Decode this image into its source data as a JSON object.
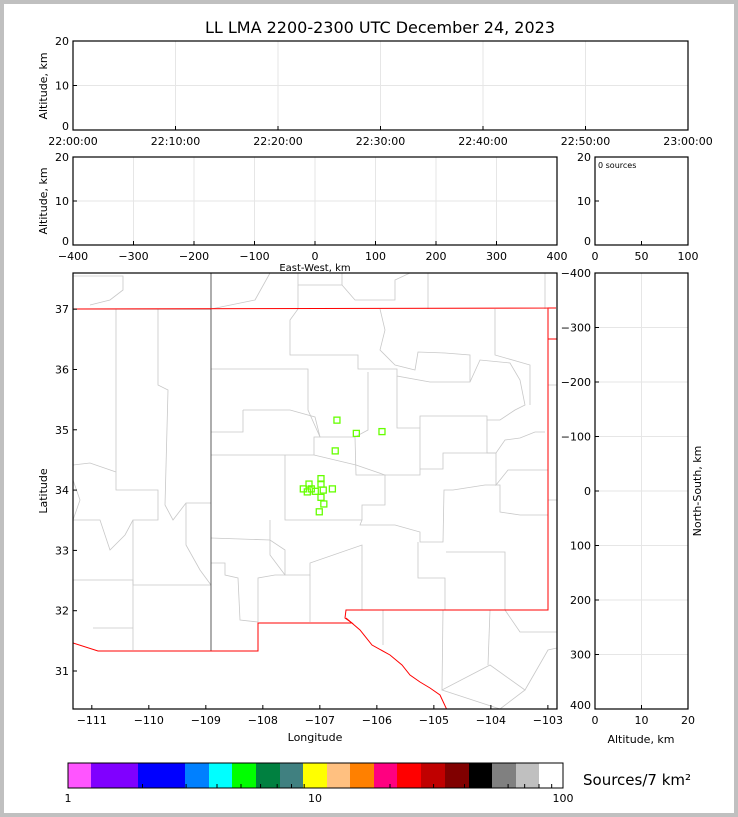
{
  "title": "LL LMA 2200-2300 UTC December 24, 2023",
  "sources_note": "0 sources",
  "colorbar": {
    "label": "Sources/7 km²",
    "ticks": [
      "1",
      "10",
      "100"
    ],
    "scale": "log",
    "range": [
      1,
      100
    ],
    "colors": [
      "#ff55ff",
      "#8000ff",
      "#0000ff",
      "#0080ff",
      "#00ffff",
      "#00ff00",
      "#008040",
      "#408080",
      "#ffff00",
      "#ffc080",
      "#ff8000",
      "#ff0080",
      "#ff0000",
      "#c00000",
      "#800000",
      "#000000",
      "#808080",
      "#c0c0c0",
      "#ffffff"
    ]
  },
  "chart_data": [
    {
      "type": "scatter",
      "panel": "time-altitude",
      "xlabel": "",
      "ylabel": "Altitude, km",
      "xticks": [
        "22:00:00",
        "22:10:00",
        "22:20:00",
        "22:30:00",
        "22:40:00",
        "22:50:00",
        "23:00:00"
      ],
      "yticks": [
        "0",
        "10",
        "20"
      ],
      "ylim": [
        0,
        20
      ],
      "grid": true,
      "points": []
    },
    {
      "type": "scatter",
      "panel": "east-west-altitude",
      "xlabel": "East-West, km",
      "ylabel": "Altitude, km",
      "xticks": [
        "−400",
        "−300",
        "−200",
        "−100",
        "0",
        "100",
        "200",
        "300",
        "400"
      ],
      "yticks": [
        "0",
        "10",
        "20"
      ],
      "xlim": [
        -400,
        400
      ],
      "ylim": [
        0,
        20
      ],
      "grid": true,
      "points": []
    },
    {
      "type": "bar",
      "panel": "altitude-histogram",
      "xticks": [
        "0",
        "50",
        "100"
      ],
      "yticks": [
        "0",
        "10",
        "20"
      ],
      "xlim": [
        0,
        100
      ],
      "ylim": [
        0,
        20
      ],
      "values": []
    },
    {
      "type": "scatter",
      "panel": "plan-view",
      "xlabel": "Longitude",
      "ylabel": "Latitude",
      "xticks": [
        "−111",
        "−110",
        "−109",
        "−108",
        "−107",
        "−106",
        "−105",
        "−104",
        "−103"
      ],
      "yticks": [
        "31",
        "32",
        "33",
        "34",
        "35",
        "36",
        "37"
      ],
      "xlim": [
        -111.33,
        -102.84
      ],
      "ylim": [
        30.37,
        37.6
      ],
      "marker": "open-square",
      "marker_color": "#66ff00",
      "points": [
        {
          "lon": -106.7,
          "lat": 35.16
        },
        {
          "lon": -106.36,
          "lat": 34.94
        },
        {
          "lon": -105.91,
          "lat": 34.97
        },
        {
          "lon": -106.73,
          "lat": 34.65
        },
        {
          "lon": -106.98,
          "lat": 34.19
        },
        {
          "lon": -107.19,
          "lat": 34.1
        },
        {
          "lon": -106.98,
          "lat": 34.1
        },
        {
          "lon": -107.29,
          "lat": 34.02
        },
        {
          "lon": -107.15,
          "lat": 34.02
        },
        {
          "lon": -107.08,
          "lat": 33.98
        },
        {
          "lon": -106.94,
          "lat": 34.0
        },
        {
          "lon": -106.78,
          "lat": 34.02
        },
        {
          "lon": -107.22,
          "lat": 33.97
        },
        {
          "lon": -106.98,
          "lat": 33.88
        },
        {
          "lon": -106.93,
          "lat": 33.77
        },
        {
          "lon": -107.01,
          "lat": 33.64
        }
      ]
    },
    {
      "type": "scatter",
      "panel": "altitude-north-south",
      "xlabel": "Altitude, km",
      "ylabel": "North-South, km",
      "xticks": [
        "0",
        "10",
        "20"
      ],
      "yticks": [
        "−400",
        "−300",
        "−200",
        "−100",
        "0",
        "100",
        "200",
        "300",
        "400"
      ],
      "xlim": [
        0,
        20
      ],
      "ylim": [
        -400,
        400
      ],
      "grid": true,
      "points": []
    }
  ]
}
